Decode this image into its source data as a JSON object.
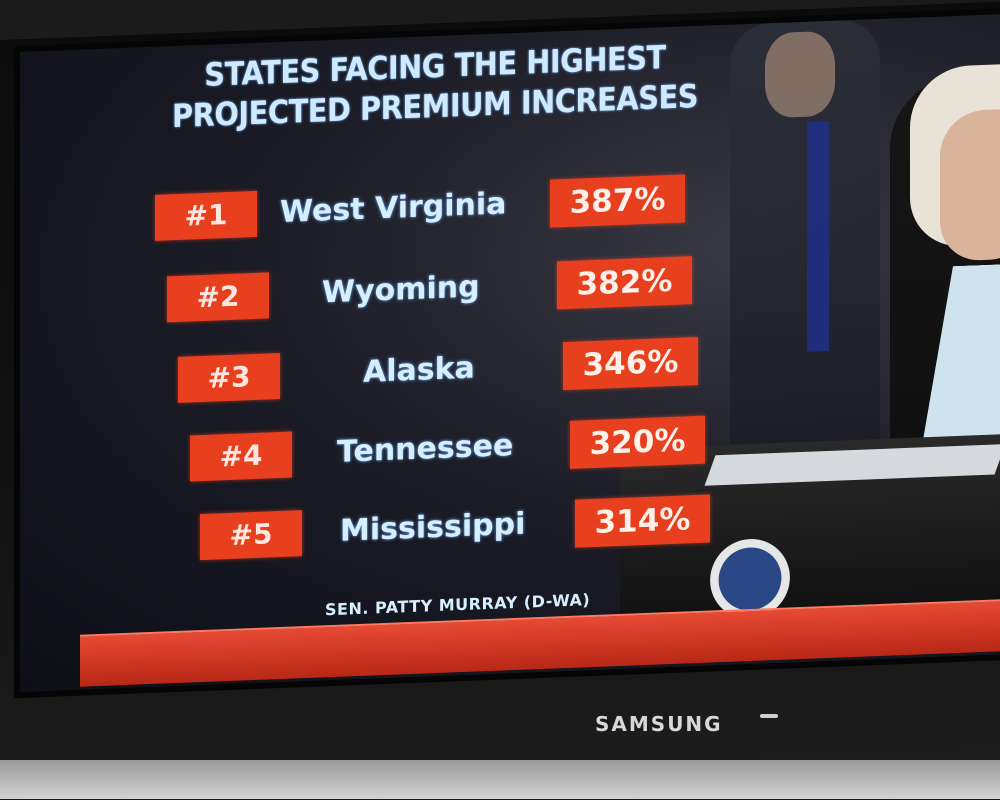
{
  "headline": {
    "line1": "STATES FACING THE HIGHEST",
    "line2": "PROJECTED PREMIUM INCREASES"
  },
  "rankings": [
    {
      "rank": "#1",
      "state": "West Virginia",
      "increase": "387%"
    },
    {
      "rank": "#2",
      "state": "Wyoming",
      "increase": "382%"
    },
    {
      "rank": "#3",
      "state": "Alaska",
      "increase": "346%"
    },
    {
      "rank": "#4",
      "state": "Tennessee",
      "increase": "320%"
    },
    {
      "rank": "#5",
      "state": "Mississippi",
      "increase": "314%"
    }
  ],
  "credit": "SEN. PATTY MURRAY (D-WA)",
  "tv_brand": "SAMSUNG",
  "colors": {
    "badge_red": "#e8401f",
    "text_light_blue": "#d6efff",
    "ticker_red": "#d23a22"
  }
}
